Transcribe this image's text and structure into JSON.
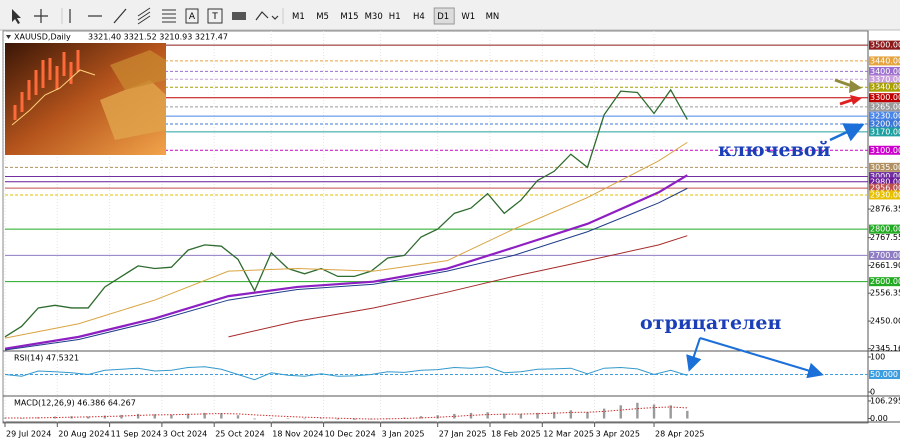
{
  "toolbar": {
    "timeframes": [
      "M1",
      "M5",
      "M15",
      "M30",
      "H1",
      "H4",
      "D1",
      "W1",
      "MN"
    ],
    "active": 6
  },
  "chart_data": [
    {
      "type": "line",
      "title": "XAUUSD,Daily",
      "subtitle": "3321.40 3321.52 3210.93 3217.47",
      "annotations": [
        "ключевой",
        "отрицателен"
      ],
      "xlim": [
        "29 Jul 2024",
        "27 Jul 2025"
      ],
      "xticks": [
        "29 Jul 2024",
        "20 Aug 2024",
        "11 Sep 2024",
        "3 Oct 2024",
        "25 Oct 2024",
        "18 Nov 2024",
        "10 Dec 2024",
        "3 Jan 2025",
        "27 Jan 2025",
        "18 Feb 2025",
        "12 Mar 2025",
        "3 Apr 2025",
        "28 Apr 2025"
      ],
      "ylim": [
        2340,
        3550
      ],
      "yticks": [
        2345.16,
        {
          "value": 2450,
          "label": "2450.00"
        },
        2556.35,
        {
          "value": 2661.9,
          "label": "2661.90"
        },
        2767.55,
        2876.35
      ],
      "grid": true,
      "levels": [
        {
          "value": 3500,
          "label": "3500.00",
          "color": "#8b1a1a",
          "dash": false
        },
        {
          "value": 3440,
          "label": "3440.00",
          "color": "#e6a23c",
          "dash": true
        },
        {
          "value": 3400,
          "label": "3400.00",
          "color": "#9b6fd0",
          "dash": true
        },
        {
          "value": 3370,
          "label": "3370.00",
          "color": "#c9a0dc",
          "dash": true
        },
        {
          "value": 3340,
          "label": "3340.00",
          "color": "#a8a000",
          "dash": true
        },
        {
          "value": 3300,
          "label": "3300.00",
          "color": "#c00000",
          "dash": false
        },
        {
          "value": 3265,
          "label": "3265.00",
          "color": "#9a9a9a",
          "dash": true
        },
        {
          "value": 3230,
          "label": "3230.00",
          "color": "#4a86e8",
          "dash": false
        },
        {
          "value": 3200,
          "label": "3200.00",
          "color": "#3c78d8",
          "dash": true
        },
        {
          "value": 3170,
          "label": "3170.00",
          "color": "#20a0a0",
          "dash": false
        },
        {
          "value": 3100,
          "label": "3100.00",
          "color": "#cc00cc",
          "dash": true
        },
        {
          "value": 3035,
          "label": "3035.00",
          "color": "#b09060",
          "dash": true
        },
        {
          "value": 3000,
          "label": "3000.00",
          "color": "#7030a0",
          "dash": false
        },
        {
          "value": 2980,
          "label": "2980.00",
          "color": "#6a1b9a",
          "dash": false
        },
        {
          "value": 2956,
          "label": "2956.00",
          "color": "#c0504d",
          "dash": false
        },
        {
          "value": 2930,
          "label": "2930.00",
          "color": "#e6c000",
          "dash": true
        },
        {
          "value": 2800,
          "label": "2800.00",
          "color": "#22aa22",
          "dash": false
        },
        {
          "value": 2700,
          "label": "2700.00",
          "color": "#8e7cc3",
          "dash": false
        },
        {
          "value": 2600,
          "label": "2600.00",
          "color": "#22aa22",
          "dash": false
        }
      ],
      "series": [
        {
          "color": "#2e6b2e",
          "width": 1.3,
          "x": [
            "29 Jul 2024",
            "5 Aug 2024",
            "12 Aug 2024",
            "19 Aug 2024",
            "26 Aug 2024",
            "2 Sep 2024",
            "9 Sep 2024",
            "16 Sep 2024",
            "23 Sep 2024",
            "30 Sep 2024",
            "7 Oct 2024",
            "14 Oct 2024",
            "21 Oct 2024",
            "28 Oct 2024",
            "4 Nov 2024",
            "11 Nov 2024",
            "18 Nov 2024",
            "25 Nov 2024",
            "2 Dec 2024",
            "9 Dec 2024",
            "16 Dec 2024",
            "23 Dec 2024",
            "30 Dec 2024",
            "6 Jan 2025",
            "13 Jan 2025",
            "20 Jan 2025",
            "27 Jan 2025",
            "3 Feb 2025",
            "10 Feb 2025",
            "17 Feb 2025",
            "24 Feb 2025",
            "3 Mar 2025",
            "10 Mar 2025",
            "17 Mar 2025",
            "24 Mar 2025",
            "31 Mar 2025",
            "7 Apr 2025",
            "14 Apr 2025",
            "21 Apr 2025",
            "28 Apr 2025",
            "5 May 2025",
            "12 May 2025"
          ],
          "values": [
            2390,
            2430,
            2500,
            2510,
            2500,
            2500,
            2580,
            2620,
            2660,
            2650,
            2655,
            2720,
            2740,
            2735,
            2685,
            2565,
            2710,
            2650,
            2630,
            2650,
            2620,
            2620,
            2640,
            2690,
            2700,
            2770,
            2800,
            2860,
            2880,
            2935,
            2860,
            2910,
            2985,
            3020,
            3085,
            3035,
            3235,
            3325,
            3320,
            3240,
            3330,
            3217
          ]
        },
        {
          "color": "#d9a441",
          "width": 1,
          "x": [
            "29 Jul 2024",
            "29 Aug 2024",
            "30 Sep 2024",
            "31 Oct 2024",
            "29 Nov 2024",
            "31 Dec 2024",
            "31 Jan 2025",
            "28 Feb 2025",
            "31 Mar 2025",
            "30 Apr 2025",
            "12 May 2025"
          ],
          "values": [
            2385,
            2440,
            2530,
            2640,
            2650,
            2640,
            2680,
            2800,
            2920,
            3060,
            3130
          ]
        },
        {
          "color": "#8e1fc2",
          "width": 2.2,
          "x": [
            "29 Jul 2024",
            "29 Aug 2024",
            "30 Sep 2024",
            "31 Oct 2024",
            "29 Nov 2024",
            "31 Dec 2024",
            "31 Jan 2025",
            "28 Feb 2025",
            "31 Mar 2025",
            "30 Apr 2025",
            "12 May 2025"
          ],
          "values": [
            2345,
            2390,
            2460,
            2545,
            2580,
            2600,
            2650,
            2730,
            2820,
            2940,
            3005
          ]
        },
        {
          "color": "#1f3c88",
          "width": 1,
          "x": [
            "29 Jul 2024",
            "29 Aug 2024",
            "30 Sep 2024",
            "31 Oct 2024",
            "29 Nov 2024",
            "31 Dec 2024",
            "31 Jan 2025",
            "28 Feb 2025",
            "31 Mar 2025",
            "30 Apr 2025",
            "12 May 2025"
          ],
          "values": [
            2340,
            2380,
            2450,
            2530,
            2570,
            2590,
            2640,
            2700,
            2790,
            2900,
            2955
          ]
        },
        {
          "color": "#a52a2a",
          "width": 1,
          "x": [
            "29 Jul 2024",
            "29 Aug 2024",
            "30 Sep 2024",
            "31 Oct 2024",
            "29 Nov 2024",
            "31 Dec 2024",
            "31 Jan 2025",
            "28 Feb 2025",
            "31 Mar 2025",
            "30 Apr 2025",
            "12 May 2025"
          ],
          "values": [
            null,
            null,
            null,
            2390,
            2450,
            2500,
            2560,
            2620,
            2680,
            2740,
            2775
          ]
        }
      ]
    },
    {
      "type": "line",
      "title": "RSI(14) 47.5321",
      "xlim": [
        "29 Jul 2024",
        "27 Jul 2025"
      ],
      "ylim": [
        0,
        100
      ],
      "yticks": [
        100,
        0
      ],
      "levels": [
        {
          "value": 50,
          "label": "50.000",
          "color": "#3c9ee0",
          "dash": true
        }
      ],
      "series": [
        {
          "color": "#3399cc",
          "width": 1,
          "x": [
            "29 Jul 2024",
            "5 Aug 2024",
            "12 Aug 2024",
            "19 Aug 2024",
            "26 Aug 2024",
            "2 Sep 2024",
            "9 Sep 2024",
            "16 Sep 2024",
            "23 Sep 2024",
            "30 Sep 2024",
            "7 Oct 2024",
            "14 Oct 2024",
            "21 Oct 2024",
            "28 Oct 2024",
            "4 Nov 2024",
            "11 Nov 2024",
            "18 Nov 2024",
            "25 Nov 2024",
            "2 Dec 2024",
            "9 Dec 2024",
            "16 Dec 2024",
            "23 Dec 2024",
            "30 Dec 2024",
            "6 Jan 2025",
            "13 Jan 2025",
            "20 Jan 2025",
            "27 Jan 2025",
            "3 Feb 2025",
            "10 Feb 2025",
            "17 Feb 2025",
            "24 Feb 2025",
            "3 Mar 2025",
            "10 Mar 2025",
            "17 Mar 2025",
            "24 Mar 2025",
            "31 Mar 2025",
            "7 Apr 2025",
            "14 Apr 2025",
            "21 Apr 2025",
            "28 Apr 2025",
            "5 May 2025",
            "12 May 2025"
          ],
          "values": [
            50,
            45,
            60,
            58,
            55,
            50,
            62,
            65,
            68,
            60,
            62,
            70,
            72,
            65,
            50,
            35,
            55,
            48,
            45,
            52,
            45,
            46,
            50,
            58,
            56,
            62,
            64,
            70,
            68,
            72,
            55,
            58,
            65,
            66,
            68,
            52,
            68,
            70,
            66,
            50,
            62,
            47.53
          ]
        }
      ]
    },
    {
      "type": "bar",
      "title": "MACD(12,26,9) 46.386 64.267",
      "xlim": [
        "29 Jul 2024",
        "27 Jul 2025"
      ],
      "ylim": [
        -15,
        112
      ],
      "yticks": [
        106.295,
        {
          "value": 0,
          "label": "0.00"
        }
      ],
      "series": [
        {
          "type": "bar",
          "color": "#9a9a9a",
          "x": [
            "29 Jul 2024",
            "5 Aug 2024",
            "12 Aug 2024",
            "19 Aug 2024",
            "26 Aug 2024",
            "2 Sep 2024",
            "9 Sep 2024",
            "16 Sep 2024",
            "23 Sep 2024",
            "30 Sep 2024",
            "7 Oct 2024",
            "14 Oct 2024",
            "21 Oct 2024",
            "28 Oct 2024",
            "4 Nov 2024",
            "11 Nov 2024",
            "18 Nov 2024",
            "25 Nov 2024",
            "2 Dec 2024",
            "9 Dec 2024",
            "16 Dec 2024",
            "23 Dec 2024",
            "30 Dec 2024",
            "6 Jan 2025",
            "13 Jan 2025",
            "20 Jan 2025",
            "27 Jan 2025",
            "3 Feb 2025",
            "10 Feb 2025",
            "17 Feb 2025",
            "24 Feb 2025",
            "3 Mar 2025",
            "10 Mar 2025",
            "17 Mar 2025",
            "24 Mar 2025",
            "31 Mar 2025",
            "7 Apr 2025",
            "14 Apr 2025",
            "21 Apr 2025",
            "28 Apr 2025",
            "5 May 2025",
            "12 May 2025"
          ],
          "values": [
            5,
            2,
            8,
            12,
            14,
            12,
            18,
            22,
            28,
            26,
            24,
            30,
            34,
            32,
            20,
            -5,
            2,
            -2,
            -4,
            0,
            -6,
            -8,
            -6,
            2,
            6,
            14,
            20,
            28,
            34,
            38,
            30,
            28,
            34,
            40,
            50,
            40,
            60,
            80,
            95,
            85,
            80,
            46.386
          ]
        },
        {
          "type": "line",
          "color": "#cc3333",
          "width": 1,
          "dash": true,
          "x": [
            "29 Jul 2024",
            "5 Aug 2024",
            "12 Aug 2024",
            "19 Aug 2024",
            "26 Aug 2024",
            "2 Sep 2024",
            "9 Sep 2024",
            "16 Sep 2024",
            "23 Sep 2024",
            "30 Sep 2024",
            "7 Oct 2024",
            "14 Oct 2024",
            "21 Oct 2024",
            "28 Oct 2024",
            "4 Nov 2024",
            "11 Nov 2024",
            "18 Nov 2024",
            "25 Nov 2024",
            "2 Dec 2024",
            "9 Dec 2024",
            "16 Dec 2024",
            "23 Dec 2024",
            "30 Dec 2024",
            "6 Jan 2025",
            "13 Jan 2025",
            "20 Jan 2025",
            "27 Jan 2025",
            "3 Feb 2025",
            "10 Feb 2025",
            "17 Feb 2025",
            "24 Feb 2025",
            "3 Mar 2025",
            "10 Mar 2025",
            "17 Mar 2025",
            "24 Mar 2025",
            "31 Mar 2025",
            "7 Apr 2025",
            "14 Apr 2025",
            "21 Apr 2025",
            "28 Apr 2025",
            "5 May 2025",
            "12 May 2025"
          ],
          "values": [
            3,
            3,
            4,
            6,
            8,
            10,
            12,
            15,
            19,
            22,
            23,
            25,
            28,
            30,
            28,
            22,
            17,
            12,
            8,
            5,
            2,
            -1,
            -3,
            -2,
            0,
            4,
            8,
            13,
            19,
            24,
            26,
            27,
            29,
            32,
            37,
            38,
            43,
            51,
            60,
            66,
            70,
            64.267
          ]
        }
      ]
    }
  ]
}
